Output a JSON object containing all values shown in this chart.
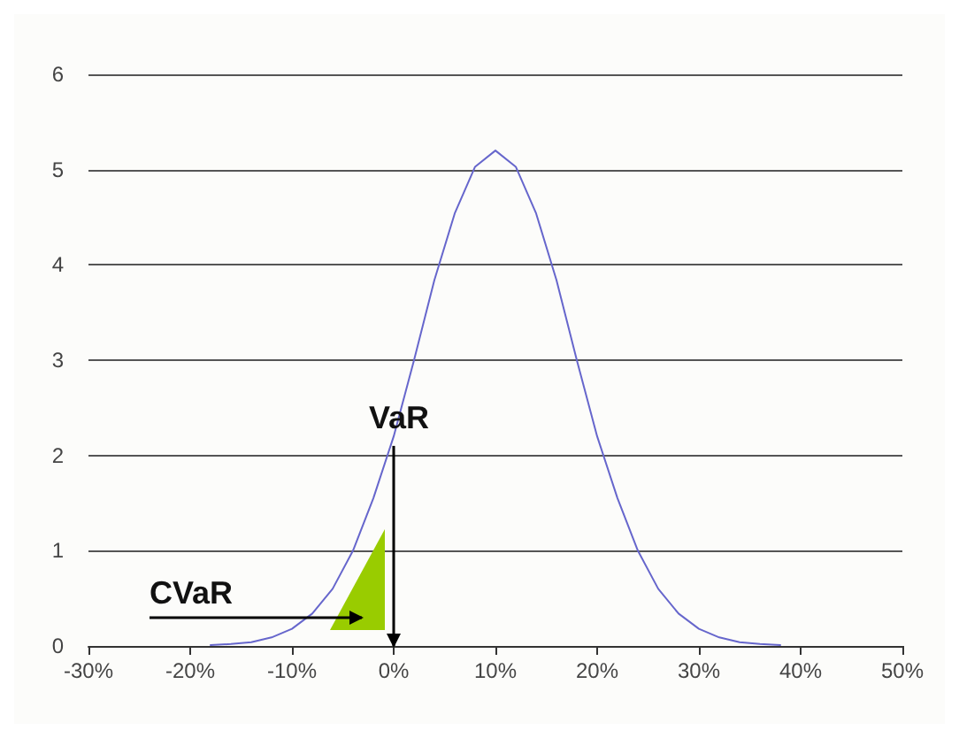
{
  "chart_data": {
    "type": "line",
    "x": [
      -18,
      -16,
      -14,
      -12,
      -10,
      -8,
      -6,
      -4,
      -2,
      0,
      2,
      4,
      6,
      8,
      10,
      12,
      14,
      16,
      18,
      20,
      22,
      24,
      26,
      28,
      30,
      32,
      34,
      36,
      38
    ],
    "series": [
      {
        "color": "#6666cc",
        "values": [
          0.01,
          0.02,
          0.04,
          0.09,
          0.18,
          0.34,
          0.6,
          1.0,
          1.55,
          2.2,
          3.0,
          3.84,
          4.54,
          5.03,
          5.2,
          5.03,
          4.54,
          3.84,
          3.0,
          2.2,
          1.55,
          1.0,
          0.6,
          0.34,
          0.18,
          0.09,
          0.04,
          0.02,
          0.01
        ]
      }
    ],
    "xlim": [
      -30,
      50
    ],
    "xticks": [
      {
        "value": -30,
        "label": "-30%"
      },
      {
        "value": -20,
        "label": "-20%"
      },
      {
        "value": -10,
        "label": "-10%"
      },
      {
        "value": 0,
        "label": "0%"
      },
      {
        "value": 10,
        "label": "10%"
      },
      {
        "value": 20,
        "label": "20%"
      },
      {
        "value": 30,
        "label": "30%"
      },
      {
        "value": 40,
        "label": "40%"
      },
      {
        "value": 50,
        "label": "50%"
      }
    ],
    "ylim": [
      0,
      6
    ],
    "yticks": [
      0,
      1,
      2,
      3,
      4,
      5,
      6
    ],
    "grid": "y",
    "marker": "none",
    "line_style": "solid",
    "annotations": [
      {
        "text": "VaR",
        "x": 0,
        "y": 2.1
      },
      "CVaR"
    ]
  }
}
